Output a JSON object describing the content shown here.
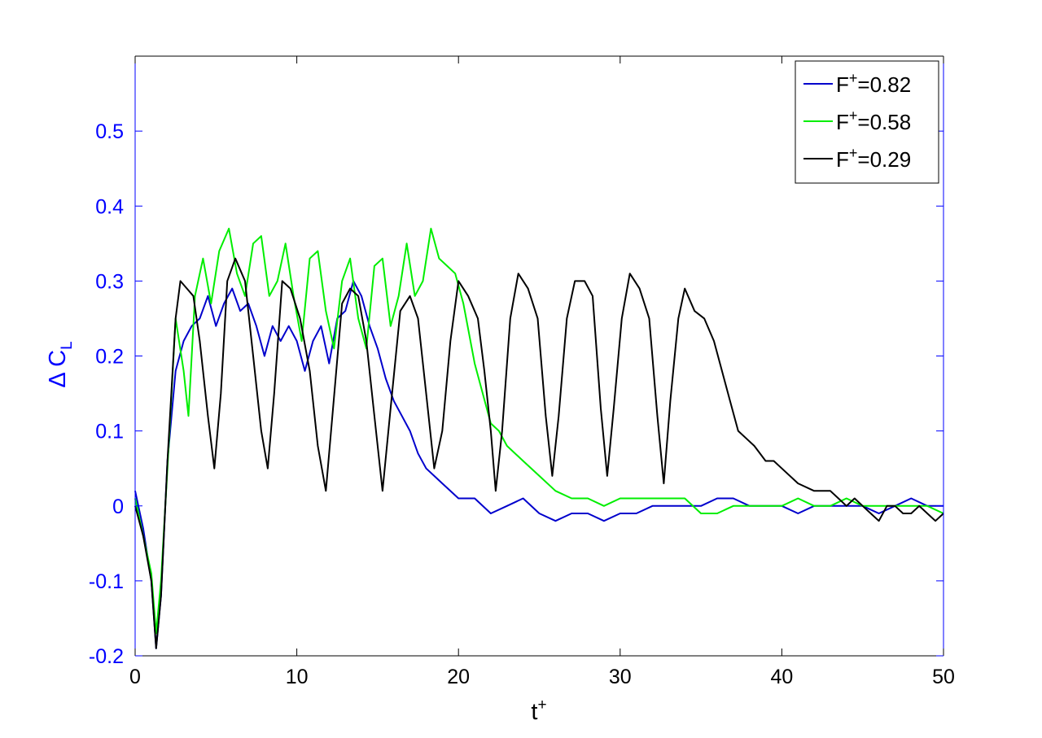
{
  "chart_data": {
    "type": "line",
    "xlabel": {
      "base": "t",
      "sup": "+"
    },
    "ylabel": {
      "base": "Δ C",
      "sub": "L"
    },
    "xlim": [
      0,
      50
    ],
    "ylim": [
      -0.2,
      0.6
    ],
    "x_ticks": [
      0,
      10,
      20,
      30,
      40,
      50
    ],
    "x_tick_labels": [
      "0",
      "10",
      "20",
      "30",
      "40",
      "50"
    ],
    "y_ticks": [
      -0.2,
      -0.1,
      0,
      0.1,
      0.2,
      0.3,
      0.4,
      0.5
    ],
    "y_tick_labels": [
      "-0.2",
      "-0.1",
      "0",
      "0.1",
      "0.2",
      "0.3",
      "0.4",
      "0.5"
    ],
    "grid": false,
    "legend_position": "top-right",
    "y_axis_color": "#0000ff",
    "x_axis_color": "#000000",
    "series": [
      {
        "name": "F+=0.82",
        "label_base": "F",
        "label_sup": "+",
        "label_value": "=0.82",
        "color": "#0000cc",
        "points": [
          [
            0,
            0.02
          ],
          [
            0.5,
            -0.03
          ],
          [
            1.0,
            -0.1
          ],
          [
            1.3,
            -0.19
          ],
          [
            1.6,
            -0.12
          ],
          [
            2.0,
            0.06
          ],
          [
            2.5,
            0.18
          ],
          [
            3.0,
            0.22
          ],
          [
            3.5,
            0.24
          ],
          [
            4.0,
            0.25
          ],
          [
            4.5,
            0.28
          ],
          [
            5.0,
            0.24
          ],
          [
            5.5,
            0.27
          ],
          [
            6.0,
            0.29
          ],
          [
            6.5,
            0.26
          ],
          [
            7.0,
            0.27
          ],
          [
            7.5,
            0.24
          ],
          [
            8.0,
            0.2
          ],
          [
            8.5,
            0.24
          ],
          [
            9.0,
            0.22
          ],
          [
            9.5,
            0.24
          ],
          [
            10.0,
            0.22
          ],
          [
            10.5,
            0.18
          ],
          [
            11.0,
            0.22
          ],
          [
            11.5,
            0.24
          ],
          [
            12.0,
            0.19
          ],
          [
            12.5,
            0.25
          ],
          [
            13.0,
            0.26
          ],
          [
            13.5,
            0.3
          ],
          [
            14.0,
            0.28
          ],
          [
            14.5,
            0.24
          ],
          [
            15.0,
            0.21
          ],
          [
            15.5,
            0.17
          ],
          [
            16.0,
            0.14
          ],
          [
            16.5,
            0.12
          ],
          [
            17.0,
            0.1
          ],
          [
            17.5,
            0.07
          ],
          [
            18.0,
            0.05
          ],
          [
            18.5,
            0.04
          ],
          [
            19.0,
            0.03
          ],
          [
            20.0,
            0.01
          ],
          [
            21.0,
            0.01
          ],
          [
            22.0,
            -0.01
          ],
          [
            23.0,
            0.0
          ],
          [
            24.0,
            0.01
          ],
          [
            25.0,
            -0.01
          ],
          [
            26.0,
            -0.02
          ],
          [
            27.0,
            -0.01
          ],
          [
            28.0,
            -0.01
          ],
          [
            29.0,
            -0.02
          ],
          [
            30.0,
            -0.01
          ],
          [
            31.0,
            -0.01
          ],
          [
            32.0,
            0.0
          ],
          [
            33.0,
            0.0
          ],
          [
            34.0,
            0.0
          ],
          [
            35.0,
            0.0
          ],
          [
            36.0,
            0.01
          ],
          [
            37.0,
            0.01
          ],
          [
            38.0,
            0.0
          ],
          [
            39.0,
            0.0
          ],
          [
            40.0,
            0.0
          ],
          [
            41.0,
            -0.01
          ],
          [
            42.0,
            0.0
          ],
          [
            43.0,
            0.0
          ],
          [
            44.0,
            0.0
          ],
          [
            45.0,
            0.0
          ],
          [
            46.0,
            -0.01
          ],
          [
            47.0,
            0.0
          ],
          [
            48.0,
            0.01
          ],
          [
            49.0,
            0.0
          ],
          [
            50.0,
            0.0
          ]
        ]
      },
      {
        "name": "F+=0.58",
        "label_base": "F",
        "label_sup": "+",
        "label_value": "=0.58",
        "color": "#00ee00",
        "points": [
          [
            0,
            0.01
          ],
          [
            0.5,
            -0.04
          ],
          [
            1.0,
            -0.09
          ],
          [
            1.3,
            -0.17
          ],
          [
            1.6,
            -0.1
          ],
          [
            2.0,
            0.05
          ],
          [
            2.5,
            0.25
          ],
          [
            3.0,
            0.18
          ],
          [
            3.3,
            0.12
          ],
          [
            3.7,
            0.28
          ],
          [
            4.2,
            0.33
          ],
          [
            4.7,
            0.27
          ],
          [
            5.2,
            0.34
          ],
          [
            5.8,
            0.37
          ],
          [
            6.3,
            0.31
          ],
          [
            6.8,
            0.28
          ],
          [
            7.3,
            0.35
          ],
          [
            7.8,
            0.36
          ],
          [
            8.3,
            0.28
          ],
          [
            8.8,
            0.3
          ],
          [
            9.3,
            0.35
          ],
          [
            9.8,
            0.28
          ],
          [
            10.3,
            0.22
          ],
          [
            10.8,
            0.33
          ],
          [
            11.3,
            0.34
          ],
          [
            11.8,
            0.26
          ],
          [
            12.3,
            0.21
          ],
          [
            12.8,
            0.3
          ],
          [
            13.3,
            0.33
          ],
          [
            13.8,
            0.25
          ],
          [
            14.3,
            0.21
          ],
          [
            14.8,
            0.32
          ],
          [
            15.3,
            0.33
          ],
          [
            15.8,
            0.24
          ],
          [
            16.3,
            0.28
          ],
          [
            16.8,
            0.35
          ],
          [
            17.3,
            0.28
          ],
          [
            17.8,
            0.3
          ],
          [
            18.3,
            0.37
          ],
          [
            18.8,
            0.33
          ],
          [
            19.3,
            0.32
          ],
          [
            19.8,
            0.31
          ],
          [
            20.3,
            0.27
          ],
          [
            21.0,
            0.19
          ],
          [
            21.5,
            0.15
          ],
          [
            22.0,
            0.11
          ],
          [
            22.5,
            0.1
          ],
          [
            23.0,
            0.08
          ],
          [
            24.0,
            0.06
          ],
          [
            25.0,
            0.04
          ],
          [
            26.0,
            0.02
          ],
          [
            27.0,
            0.01
          ],
          [
            28.0,
            0.01
          ],
          [
            29.0,
            0.0
          ],
          [
            30.0,
            0.01
          ],
          [
            31.0,
            0.01
          ],
          [
            32.0,
            0.01
          ],
          [
            33.0,
            0.01
          ],
          [
            34.0,
            0.01
          ],
          [
            35.0,
            -0.01
          ],
          [
            36.0,
            -0.01
          ],
          [
            37.0,
            0.0
          ],
          [
            38.0,
            0.0
          ],
          [
            39.0,
            0.0
          ],
          [
            40.0,
            0.0
          ],
          [
            41.0,
            0.01
          ],
          [
            42.0,
            0.0
          ],
          [
            43.0,
            0.0
          ],
          [
            44.0,
            0.01
          ],
          [
            45.0,
            0.0
          ],
          [
            46.0,
            0.0
          ],
          [
            47.0,
            0.0
          ],
          [
            48.0,
            0.0
          ],
          [
            49.0,
            0.0
          ],
          [
            50.0,
            -0.01
          ]
        ]
      },
      {
        "name": "F+=0.29",
        "label_base": "F",
        "label_sup": "+",
        "label_value": "=0.29",
        "color": "#000000",
        "points": [
          [
            0,
            0.0
          ],
          [
            0.5,
            -0.04
          ],
          [
            1.0,
            -0.1
          ],
          [
            1.3,
            -0.19
          ],
          [
            1.6,
            -0.12
          ],
          [
            2.0,
            0.06
          ],
          [
            2.5,
            0.25
          ],
          [
            2.8,
            0.3
          ],
          [
            3.2,
            0.29
          ],
          [
            3.6,
            0.28
          ],
          [
            4.0,
            0.22
          ],
          [
            4.5,
            0.12
          ],
          [
            4.9,
            0.05
          ],
          [
            5.3,
            0.15
          ],
          [
            5.7,
            0.3
          ],
          [
            6.2,
            0.33
          ],
          [
            6.8,
            0.3
          ],
          [
            7.3,
            0.2
          ],
          [
            7.8,
            0.1
          ],
          [
            8.2,
            0.05
          ],
          [
            8.6,
            0.15
          ],
          [
            9.1,
            0.3
          ],
          [
            9.6,
            0.29
          ],
          [
            10.2,
            0.25
          ],
          [
            10.8,
            0.18
          ],
          [
            11.3,
            0.08
          ],
          [
            11.8,
            0.02
          ],
          [
            12.2,
            0.12
          ],
          [
            12.8,
            0.27
          ],
          [
            13.3,
            0.29
          ],
          [
            13.8,
            0.28
          ],
          [
            14.3,
            0.22
          ],
          [
            14.8,
            0.12
          ],
          [
            15.3,
            0.02
          ],
          [
            15.8,
            0.13
          ],
          [
            16.4,
            0.26
          ],
          [
            17.0,
            0.28
          ],
          [
            17.5,
            0.25
          ],
          [
            18.0,
            0.15
          ],
          [
            18.5,
            0.05
          ],
          [
            19.0,
            0.1
          ],
          [
            19.5,
            0.22
          ],
          [
            20.0,
            0.3
          ],
          [
            20.6,
            0.28
          ],
          [
            21.2,
            0.25
          ],
          [
            21.6,
            0.18
          ],
          [
            22.0,
            0.1
          ],
          [
            22.3,
            0.02
          ],
          [
            22.7,
            0.1
          ],
          [
            23.2,
            0.25
          ],
          [
            23.7,
            0.31
          ],
          [
            24.3,
            0.29
          ],
          [
            24.9,
            0.25
          ],
          [
            25.4,
            0.12
          ],
          [
            25.8,
            0.04
          ],
          [
            26.2,
            0.12
          ],
          [
            26.7,
            0.25
          ],
          [
            27.2,
            0.3
          ],
          [
            27.8,
            0.3
          ],
          [
            28.3,
            0.28
          ],
          [
            28.8,
            0.13
          ],
          [
            29.2,
            0.04
          ],
          [
            29.6,
            0.13
          ],
          [
            30.1,
            0.25
          ],
          [
            30.6,
            0.31
          ],
          [
            31.2,
            0.29
          ],
          [
            31.8,
            0.25
          ],
          [
            32.3,
            0.12
          ],
          [
            32.7,
            0.03
          ],
          [
            33.1,
            0.14
          ],
          [
            33.6,
            0.25
          ],
          [
            34.0,
            0.29
          ],
          [
            34.6,
            0.26
          ],
          [
            35.2,
            0.25
          ],
          [
            35.8,
            0.22
          ],
          [
            36.3,
            0.18
          ],
          [
            36.8,
            0.14
          ],
          [
            37.3,
            0.1
          ],
          [
            37.8,
            0.09
          ],
          [
            38.3,
            0.08
          ],
          [
            39.0,
            0.06
          ],
          [
            39.5,
            0.06
          ],
          [
            40.0,
            0.05
          ],
          [
            41.0,
            0.03
          ],
          [
            42.0,
            0.02
          ],
          [
            43.0,
            0.02
          ],
          [
            43.5,
            0.01
          ],
          [
            44.0,
            0.0
          ],
          [
            44.5,
            0.01
          ],
          [
            45.0,
            0.0
          ],
          [
            45.5,
            -0.01
          ],
          [
            46.0,
            -0.02
          ],
          [
            46.5,
            0.0
          ],
          [
            47.0,
            0.0
          ],
          [
            47.5,
            -0.01
          ],
          [
            48.0,
            -0.01
          ],
          [
            48.5,
            0.0
          ],
          [
            49.0,
            -0.01
          ],
          [
            49.5,
            -0.02
          ],
          [
            50.0,
            -0.01
          ]
        ]
      }
    ]
  }
}
